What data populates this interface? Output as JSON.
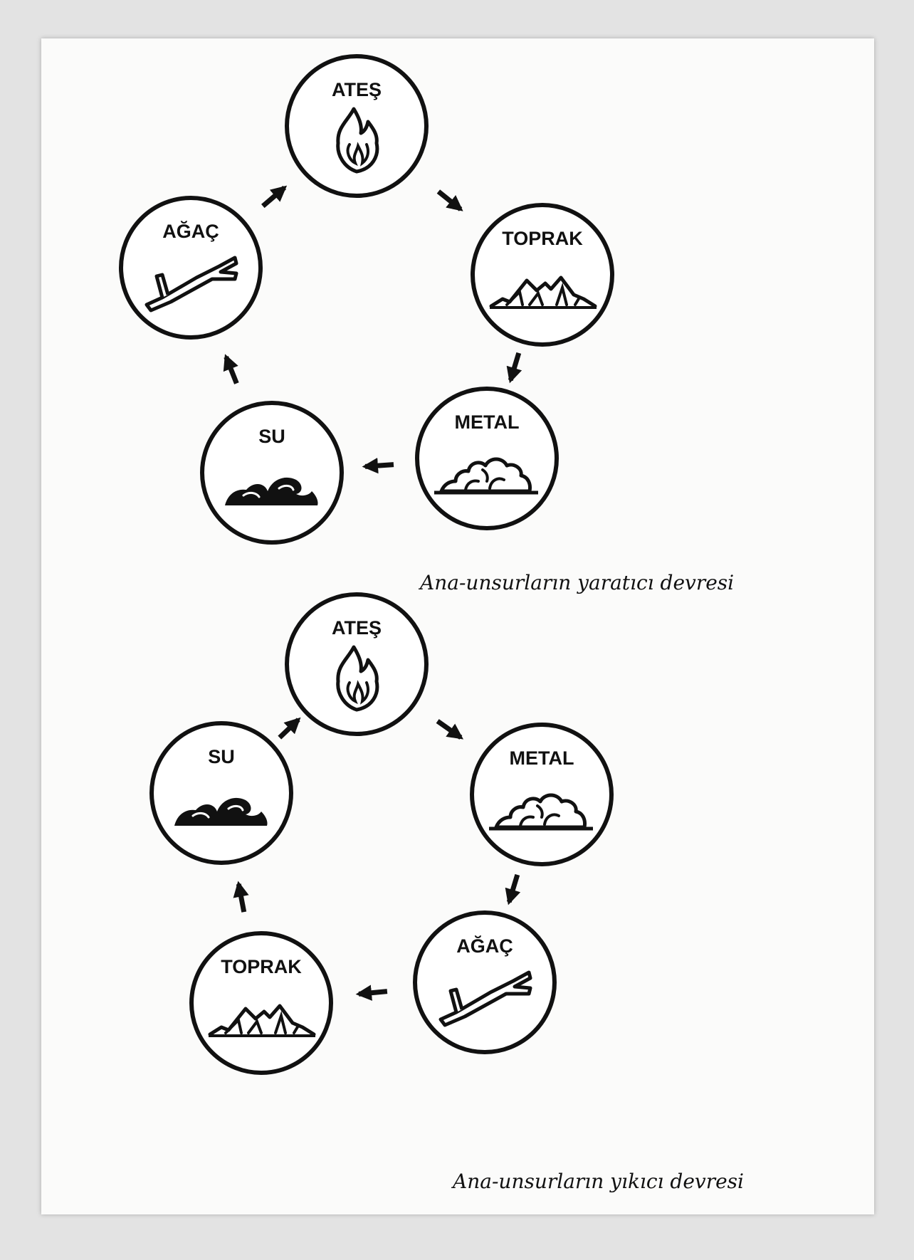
{
  "diagrams": [
    {
      "nodes": [
        {
          "label": "ATEŞ",
          "icon": "fire-icon"
        },
        {
          "label": "TOPRAK",
          "icon": "mountain-icon"
        },
        {
          "label": "METAL",
          "icon": "ore-pile-icon"
        },
        {
          "label": "SU",
          "icon": "wave-icon"
        },
        {
          "label": "AĞAÇ",
          "icon": "branch-icon"
        }
      ],
      "caption": "Ana-unsurların yaratıcı devresi"
    },
    {
      "nodes": [
        {
          "label": "ATEŞ",
          "icon": "fire-icon"
        },
        {
          "label": "METAL",
          "icon": "ore-pile-icon"
        },
        {
          "label": "AĞAÇ",
          "icon": "branch-icon"
        },
        {
          "label": "TOPRAK",
          "icon": "mountain-icon"
        },
        {
          "label": "SU",
          "icon": "wave-icon"
        }
      ],
      "caption": "Ana-unsurların yıkıcı devresi"
    }
  ]
}
